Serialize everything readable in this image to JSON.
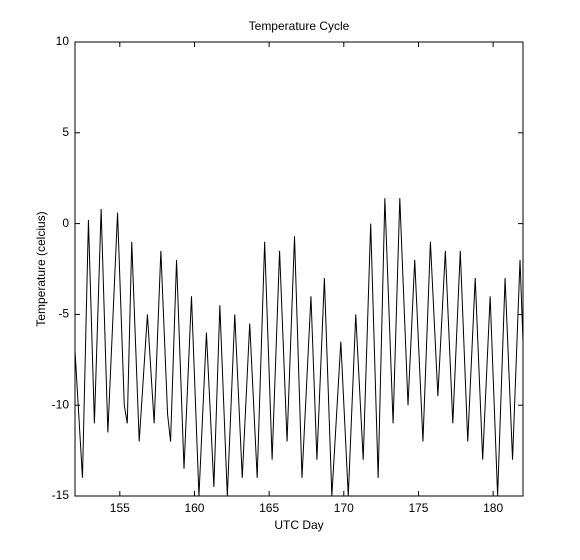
{
  "chart_data": {
    "type": "line",
    "title": "Temperature Cycle",
    "xlabel": "UTC Day",
    "ylabel": "Temperature (celcius)",
    "xlim": [
      152,
      182
    ],
    "xticks": [
      155,
      160,
      165,
      170,
      175,
      180
    ],
    "ylim": [
      -15,
      10
    ],
    "yticks": [
      -15,
      -10,
      -5,
      0,
      5,
      10
    ],
    "series": [
      {
        "color": "#000000",
        "x": [
          152.0,
          152.5,
          152.9,
          153.3,
          153.75,
          154.2,
          154.85,
          155.3,
          155.5,
          155.8,
          156.3,
          156.85,
          157.3,
          157.75,
          158.2,
          158.4,
          158.8,
          159.3,
          159.8,
          160.3,
          160.8,
          161.3,
          161.7,
          162.2,
          162.7,
          163.2,
          163.7,
          164.2,
          164.7,
          165.2,
          165.7,
          166.2,
          166.7,
          167.2,
          167.8,
          168.2,
          168.7,
          169.2,
          169.8,
          170.3,
          170.8,
          171.3,
          171.8,
          172.3,
          172.75,
          173.3,
          173.75,
          174.3,
          174.75,
          175.3,
          175.8,
          176.3,
          176.8,
          177.3,
          177.8,
          178.3,
          178.8,
          179.3,
          179.8,
          180.3,
          180.8,
          181.3,
          181.8,
          182.0
        ],
        "values": [
          -7,
          -14,
          0.2,
          -11,
          0.8,
          -11.5,
          0.6,
          -10,
          -11,
          -1,
          -12,
          -5,
          -11,
          -1.5,
          -10.5,
          -12,
          -2,
          -13.5,
          -4,
          -15,
          -6,
          -14.5,
          -4.5,
          -15,
          -5,
          -14,
          -5.5,
          -14,
          -1,
          -13,
          -1.5,
          -12,
          -0.7,
          -14,
          -4,
          -13,
          -3,
          -15,
          -6.5,
          -15,
          -5,
          -13,
          0,
          -14,
          1.4,
          -11,
          1.4,
          -10,
          -2,
          -12,
          -1,
          -9.5,
          -1.5,
          -11,
          -1.5,
          -12,
          -3,
          -13,
          -4,
          -15,
          -3,
          -13,
          -2,
          -6.5
        ]
      }
    ]
  }
}
